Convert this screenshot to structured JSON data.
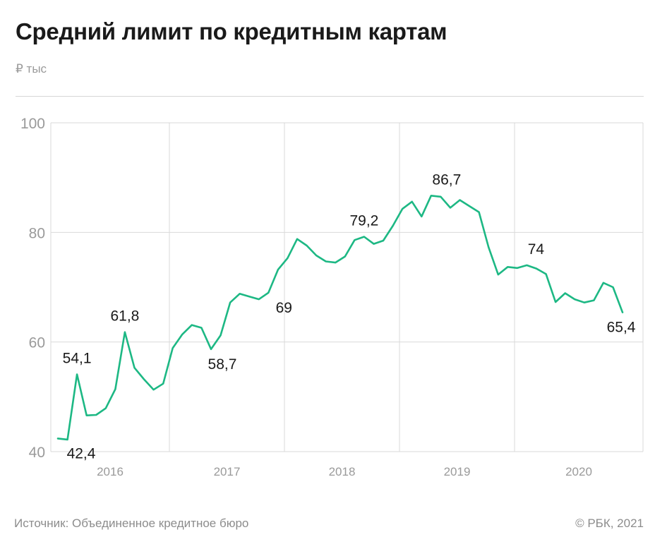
{
  "header": {
    "title": "Средний лимит по кредитным картам",
    "unit": "₽ тыс"
  },
  "footer": {
    "source": "Источник:  Объединенное кредитное бюро",
    "copyright": "©  РБК, 2021"
  },
  "colors": {
    "line": "#1db884",
    "grid": "#d9d9d9",
    "tick_text": "#9a9a9a",
    "label_text": "#1a1a1a"
  },
  "chart_data": {
    "type": "line",
    "title": "Средний лимит по кредитным картам",
    "ylabel": "₽ тыс",
    "ylim": [
      40,
      100
    ],
    "yticks": [
      40,
      60,
      80,
      100
    ],
    "grid": true,
    "legend": "none",
    "x_unit": "month",
    "x_start": "2015-08",
    "x_end": "2020-07",
    "xtick_labels": [
      "2016",
      "2017",
      "2018",
      "2019",
      "2020"
    ],
    "series": [
      {
        "color": "#1db884",
        "values": [
          42.4,
          42.2,
          54.1,
          46.6,
          46.7,
          47.9,
          51.4,
          61.8,
          55.3,
          53.2,
          51.3,
          52.4,
          58.9,
          61.4,
          63.1,
          62.6,
          58.7,
          61.2,
          67.2,
          68.8,
          68.3,
          67.8,
          69.0,
          73.2,
          75.3,
          78.8,
          77.6,
          75.8,
          74.7,
          74.5,
          75.6,
          78.6,
          79.2,
          77.9,
          78.5,
          81.2,
          84.3,
          85.6,
          82.9,
          86.7,
          86.5,
          84.5,
          85.9,
          84.8,
          83.7,
          77.3,
          72.3,
          73.7,
          73.5,
          74.0,
          73.4,
          72.4,
          67.3,
          68.9,
          67.8,
          67.2,
          67.6,
          70.8,
          70.0,
          65.4
        ]
      }
    ],
    "annotations": [
      {
        "index": 0,
        "text": "42,4"
      },
      {
        "index": 2,
        "text": "54,1"
      },
      {
        "index": 7,
        "text": "61,8"
      },
      {
        "index": 16,
        "text": "58,7"
      },
      {
        "index": 22,
        "text": "69"
      },
      {
        "index": 32,
        "text": "79,2"
      },
      {
        "index": 39,
        "text": "86,7"
      },
      {
        "index": 49,
        "text": "74"
      },
      {
        "index": 59,
        "text": "65,4"
      }
    ]
  }
}
